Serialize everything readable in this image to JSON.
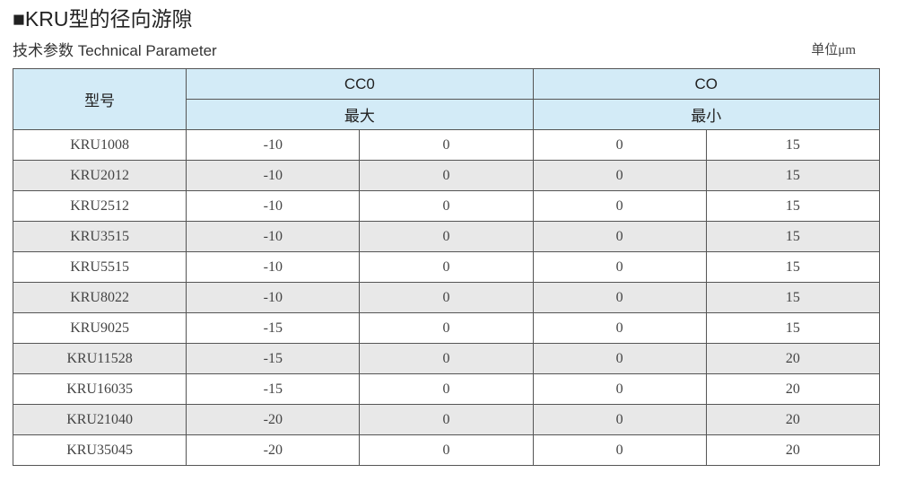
{
  "title": "■KRU型的径向游隙",
  "subtitle": "技术参数  Technical Parameter",
  "unit": "单位μm",
  "table": {
    "header": {
      "model": "型号",
      "group1": "CC0",
      "group1_sub": "最大",
      "group2": "CO",
      "group2_sub": "最小"
    },
    "rows": [
      [
        "KRU1008",
        "-10",
        "0",
        "0",
        "15"
      ],
      [
        "KRU2012",
        "-10",
        "0",
        "0",
        "15"
      ],
      [
        "KRU2512",
        "-10",
        "0",
        "0",
        "15"
      ],
      [
        "KRU3515",
        "-10",
        "0",
        "0",
        "15"
      ],
      [
        "KRU5515",
        "-10",
        "0",
        "0",
        "15"
      ],
      [
        "KRU8022",
        "-10",
        "0",
        "0",
        "15"
      ],
      [
        "KRU9025",
        "-15",
        "0",
        "0",
        "15"
      ],
      [
        "KRU11528",
        "-15",
        "0",
        "0",
        "20"
      ],
      [
        "KRU16035",
        "-15",
        "0",
        "0",
        "20"
      ],
      [
        "KRU21040",
        "-20",
        "0",
        "0",
        "20"
      ],
      [
        "KRU35045",
        "-20",
        "0",
        "0",
        "20"
      ]
    ]
  }
}
